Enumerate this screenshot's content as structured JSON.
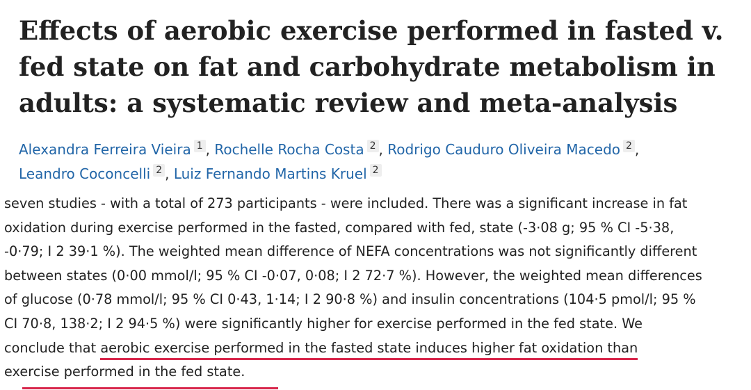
{
  "article": {
    "title": "Effects of aerobic exercise performed in fasted v. fed state on fat and carbohydrate metabolism in adults: a systematic review and meta-analysis",
    "authors": [
      {
        "name": "Alexandra Ferreira Vieira",
        "aff": "1"
      },
      {
        "name": "Rochelle Rocha Costa",
        "aff": "2"
      },
      {
        "name": "Rodrigo Cauduro Oliveira Macedo",
        "aff": "2"
      },
      {
        "name": "Leandro Coconcelli",
        "aff": "2"
      },
      {
        "name": "Luiz Fernando Martins Kruel",
        "aff": "2"
      }
    ],
    "separator": ","
  },
  "abstract": {
    "lines": [
      "seven studies - with a total of 273 participants - were included. There was a significant increase in fat",
      "oxidation during exercise performed in the fasted, compared with fed, state (-3·08 g; 95 % CI -5·38,",
      "-0·79; I 2 39·1 %). The weighted mean difference of NEFA concentrations was not significantly different",
      "between states (0·00 mmol/l; 95 % CI -0·07, 0·08; I 2 72·7 %). However, the weighted mean differences",
      "of glucose (0·78 mmol/l; 95 % CI 0·43, 1·14; I 2 90·8 %) and insulin concentrations (104·5 pmol/l; 95 %",
      "CI 70·8, 138·2; I 2 94·5 %) were significantly higher for exercise performed in the fed state. We"
    ],
    "conclusion_lead": "conclude that ",
    "conclusion_highlight": "aerobic exercise performed in the fasted state induces higher fat oxidation than",
    "final_line": "exercise performed in the fed state."
  },
  "colors": {
    "link": "#2266a8",
    "underline": "#d8264b",
    "text": "#222222"
  }
}
